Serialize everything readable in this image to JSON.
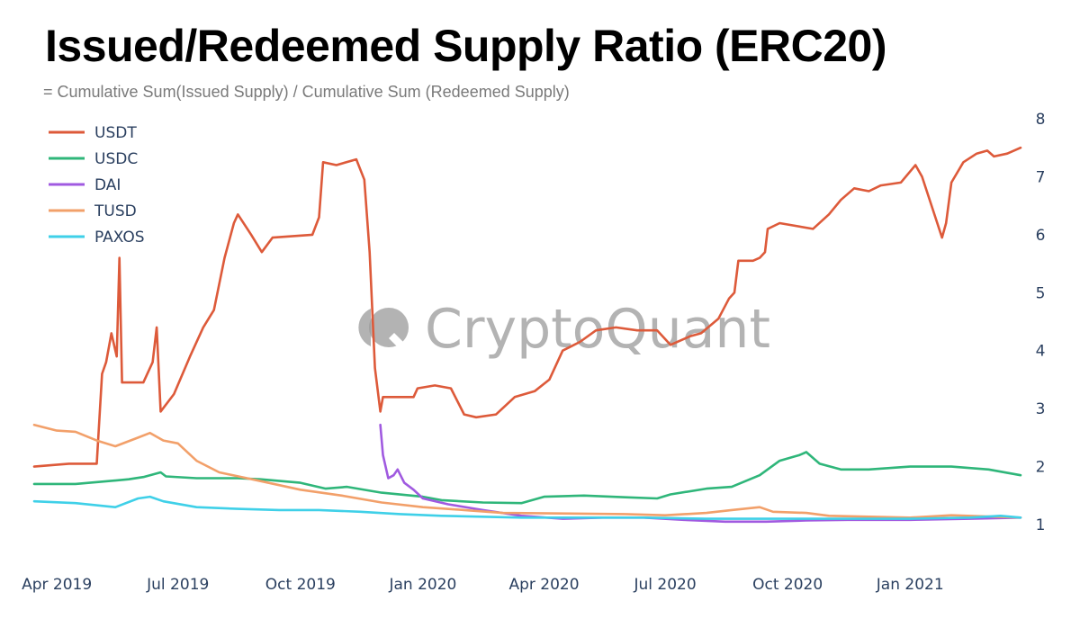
{
  "chart_data": {
    "type": "line",
    "title": "Issued/Redeemed Supply Ratio (ERC20)",
    "subtitle": "= Cumulative Sum(Issued Supply) / Cumulative Sum (Redeemed Supply)",
    "xlabel": "",
    "ylabel": "",
    "x_start": "2019-03-15",
    "x_end": "2021-03-25",
    "ylim": [
      1,
      8
    ],
    "y_axis_side": "right",
    "y_ticks": [
      1,
      2,
      3,
      4,
      5,
      6,
      7,
      8
    ],
    "x_ticks": [
      {
        "date": "2019-04-01",
        "label": "Apr 2019"
      },
      {
        "date": "2019-07-01",
        "label": "Jul 2019"
      },
      {
        "date": "2019-10-01",
        "label": "Oct 2019"
      },
      {
        "date": "2020-01-01",
        "label": "Jan 2020"
      },
      {
        "date": "2020-04-01",
        "label": "Apr 2020"
      },
      {
        "date": "2020-07-01",
        "label": "Jul 2020"
      },
      {
        "date": "2020-10-01",
        "label": "Oct 2020"
      },
      {
        "date": "2021-01-01",
        "label": "Jan 2021"
      }
    ],
    "grid": false,
    "legend_position": "top-left",
    "watermark": "CryptoQuant",
    "series": [
      {
        "name": "USDT",
        "color": "#dd5a3a",
        "points": [
          [
            "2019-03-15",
            2.0
          ],
          [
            "2019-04-10",
            2.05
          ],
          [
            "2019-05-01",
            2.05
          ],
          [
            "2019-05-05",
            3.6
          ],
          [
            "2019-05-08",
            3.8
          ],
          [
            "2019-05-12",
            4.3
          ],
          [
            "2019-05-16",
            3.9
          ],
          [
            "2019-05-18",
            5.6
          ],
          [
            "2019-05-20",
            3.45
          ],
          [
            "2019-06-05",
            3.45
          ],
          [
            "2019-06-12",
            3.8
          ],
          [
            "2019-06-15",
            4.4
          ],
          [
            "2019-06-18",
            2.95
          ],
          [
            "2019-06-28",
            3.25
          ],
          [
            "2019-07-10",
            3.9
          ],
          [
            "2019-07-20",
            4.4
          ],
          [
            "2019-07-28",
            4.7
          ],
          [
            "2019-08-05",
            5.6
          ],
          [
            "2019-08-12",
            6.2
          ],
          [
            "2019-08-15",
            6.35
          ],
          [
            "2019-08-25",
            6.0
          ],
          [
            "2019-09-02",
            5.7
          ],
          [
            "2019-09-10",
            5.95
          ],
          [
            "2019-10-10",
            6.0
          ],
          [
            "2019-10-15",
            6.3
          ],
          [
            "2019-10-18",
            7.25
          ],
          [
            "2019-10-28",
            7.2
          ],
          [
            "2019-11-12",
            7.3
          ],
          [
            "2019-11-18",
            6.95
          ],
          [
            "2019-11-22",
            5.7
          ],
          [
            "2019-11-26",
            3.7
          ],
          [
            "2019-11-30",
            2.95
          ],
          [
            "2019-12-02",
            3.2
          ],
          [
            "2019-12-25",
            3.2
          ],
          [
            "2019-12-28",
            3.35
          ],
          [
            "2020-01-10",
            3.4
          ],
          [
            "2020-01-22",
            3.35
          ],
          [
            "2020-02-01",
            2.9
          ],
          [
            "2020-02-10",
            2.85
          ],
          [
            "2020-02-25",
            2.9
          ],
          [
            "2020-03-10",
            3.2
          ],
          [
            "2020-03-25",
            3.3
          ],
          [
            "2020-04-05",
            3.5
          ],
          [
            "2020-04-15",
            4.0
          ],
          [
            "2020-04-28",
            4.15
          ],
          [
            "2020-05-10",
            4.35
          ],
          [
            "2020-05-25",
            4.4
          ],
          [
            "2020-06-10",
            4.35
          ],
          [
            "2020-06-25",
            4.35
          ],
          [
            "2020-07-05",
            4.1
          ],
          [
            "2020-07-20",
            4.25
          ],
          [
            "2020-07-28",
            4.3
          ],
          [
            "2020-08-10",
            4.55
          ],
          [
            "2020-08-18",
            4.9
          ],
          [
            "2020-08-22",
            5.0
          ],
          [
            "2020-08-25",
            5.55
          ],
          [
            "2020-09-05",
            5.55
          ],
          [
            "2020-09-10",
            5.6
          ],
          [
            "2020-09-14",
            5.7
          ],
          [
            "2020-09-16",
            6.1
          ],
          [
            "2020-09-25",
            6.2
          ],
          [
            "2020-10-20",
            6.1
          ],
          [
            "2020-11-01",
            6.35
          ],
          [
            "2020-11-10",
            6.6
          ],
          [
            "2020-11-20",
            6.8
          ],
          [
            "2020-12-01",
            6.75
          ],
          [
            "2020-12-10",
            6.85
          ],
          [
            "2020-12-25",
            6.9
          ],
          [
            "2021-01-05",
            7.2
          ],
          [
            "2021-01-10",
            7.0
          ],
          [
            "2021-01-20",
            6.3
          ],
          [
            "2021-01-25",
            5.95
          ],
          [
            "2021-01-28",
            6.2
          ],
          [
            "2021-02-01",
            6.9
          ],
          [
            "2021-02-10",
            7.25
          ],
          [
            "2021-02-20",
            7.4
          ],
          [
            "2021-02-28",
            7.45
          ],
          [
            "2021-03-05",
            7.35
          ],
          [
            "2021-03-15",
            7.4
          ],
          [
            "2021-03-25",
            7.5
          ]
        ]
      },
      {
        "name": "USDC",
        "color": "#2fb67a",
        "points": [
          [
            "2019-03-15",
            1.7
          ],
          [
            "2019-04-15",
            1.7
          ],
          [
            "2019-05-10",
            1.75
          ],
          [
            "2019-05-25",
            1.78
          ],
          [
            "2019-06-05",
            1.82
          ],
          [
            "2019-06-18",
            1.9
          ],
          [
            "2019-06-22",
            1.83
          ],
          [
            "2019-07-15",
            1.8
          ],
          [
            "2019-08-01",
            1.8
          ],
          [
            "2019-08-15",
            1.8
          ],
          [
            "2019-09-01",
            1.78
          ],
          [
            "2019-10-01",
            1.72
          ],
          [
            "2019-10-20",
            1.62
          ],
          [
            "2019-11-05",
            1.65
          ],
          [
            "2019-12-01",
            1.55
          ],
          [
            "2020-01-01",
            1.48
          ],
          [
            "2020-01-15",
            1.42
          ],
          [
            "2020-02-15",
            1.38
          ],
          [
            "2020-03-15",
            1.37
          ],
          [
            "2020-04-01",
            1.48
          ],
          [
            "2020-05-01",
            1.5
          ],
          [
            "2020-06-01",
            1.47
          ],
          [
            "2020-06-25",
            1.45
          ],
          [
            "2020-07-05",
            1.52
          ],
          [
            "2020-08-01",
            1.62
          ],
          [
            "2020-08-20",
            1.65
          ],
          [
            "2020-09-10",
            1.85
          ],
          [
            "2020-09-25",
            2.1
          ],
          [
            "2020-10-10",
            2.2
          ],
          [
            "2020-10-15",
            2.25
          ],
          [
            "2020-10-25",
            2.05
          ],
          [
            "2020-11-10",
            1.95
          ],
          [
            "2020-12-01",
            1.95
          ],
          [
            "2021-01-01",
            2.0
          ],
          [
            "2021-02-01",
            2.0
          ],
          [
            "2021-03-01",
            1.95
          ],
          [
            "2021-03-25",
            1.85
          ]
        ]
      },
      {
        "name": "DAI",
        "color": "#a05ae0",
        "points": [
          [
            "2019-11-30",
            2.72
          ],
          [
            "2019-12-02",
            2.2
          ],
          [
            "2019-12-06",
            1.8
          ],
          [
            "2019-12-10",
            1.85
          ],
          [
            "2019-12-13",
            1.95
          ],
          [
            "2019-12-18",
            1.72
          ],
          [
            "2019-12-25",
            1.6
          ],
          [
            "2020-01-01",
            1.45
          ],
          [
            "2020-01-20",
            1.35
          ],
          [
            "2020-02-15",
            1.25
          ],
          [
            "2020-03-15",
            1.15
          ],
          [
            "2020-04-15",
            1.1
          ],
          [
            "2020-05-15",
            1.12
          ],
          [
            "2020-06-15",
            1.12
          ],
          [
            "2020-07-15",
            1.08
          ],
          [
            "2020-08-15",
            1.05
          ],
          [
            "2020-09-15",
            1.05
          ],
          [
            "2020-10-15",
            1.07
          ],
          [
            "2020-11-15",
            1.08
          ],
          [
            "2021-01-01",
            1.08
          ],
          [
            "2021-02-15",
            1.1
          ],
          [
            "2021-03-25",
            1.12
          ]
        ]
      },
      {
        "name": "TUSD",
        "color": "#f2a06a",
        "points": [
          [
            "2019-03-15",
            2.72
          ],
          [
            "2019-04-01",
            2.62
          ],
          [
            "2019-04-15",
            2.6
          ],
          [
            "2019-05-01",
            2.45
          ],
          [
            "2019-05-15",
            2.35
          ],
          [
            "2019-06-01",
            2.5
          ],
          [
            "2019-06-10",
            2.58
          ],
          [
            "2019-06-20",
            2.45
          ],
          [
            "2019-07-01",
            2.4
          ],
          [
            "2019-07-15",
            2.1
          ],
          [
            "2019-08-01",
            1.9
          ],
          [
            "2019-09-01",
            1.75
          ],
          [
            "2019-10-01",
            1.6
          ],
          [
            "2019-11-01",
            1.5
          ],
          [
            "2019-12-01",
            1.38
          ],
          [
            "2020-01-01",
            1.3
          ],
          [
            "2020-02-01",
            1.25
          ],
          [
            "2020-03-01",
            1.2
          ],
          [
            "2020-06-01",
            1.18
          ],
          [
            "2020-07-01",
            1.16
          ],
          [
            "2020-08-01",
            1.2
          ],
          [
            "2020-08-20",
            1.25
          ],
          [
            "2020-09-10",
            1.3
          ],
          [
            "2020-09-20",
            1.22
          ],
          [
            "2020-10-15",
            1.2
          ],
          [
            "2020-11-01",
            1.15
          ],
          [
            "2021-01-01",
            1.12
          ],
          [
            "2021-02-01",
            1.16
          ],
          [
            "2021-03-25",
            1.12
          ]
        ]
      },
      {
        "name": "PAXOS",
        "color": "#3fd0e8",
        "points": [
          [
            "2019-03-15",
            1.4
          ],
          [
            "2019-04-15",
            1.37
          ],
          [
            "2019-05-15",
            1.3
          ],
          [
            "2019-06-01",
            1.45
          ],
          [
            "2019-06-10",
            1.48
          ],
          [
            "2019-06-20",
            1.4
          ],
          [
            "2019-07-15",
            1.3
          ],
          [
            "2019-08-15",
            1.27
          ],
          [
            "2019-09-15",
            1.25
          ],
          [
            "2019-10-15",
            1.25
          ],
          [
            "2019-11-15",
            1.22
          ],
          [
            "2019-12-15",
            1.18
          ],
          [
            "2020-01-15",
            1.15
          ],
          [
            "2020-03-15",
            1.12
          ],
          [
            "2020-06-15",
            1.12
          ],
          [
            "2020-08-01",
            1.1
          ],
          [
            "2020-10-01",
            1.1
          ],
          [
            "2021-01-01",
            1.1
          ],
          [
            "2021-02-15",
            1.12
          ],
          [
            "2021-03-10",
            1.15
          ],
          [
            "2021-03-25",
            1.12
          ]
        ]
      }
    ]
  }
}
